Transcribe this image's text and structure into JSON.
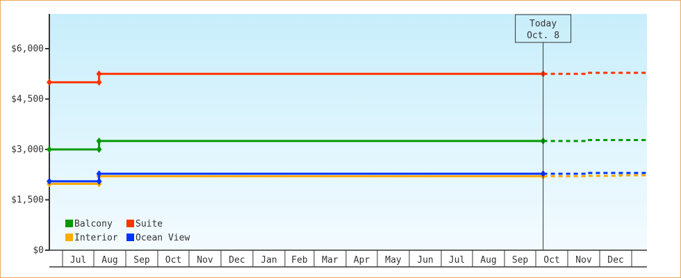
{
  "chart_data": {
    "type": "line",
    "title": "",
    "xlabel": "",
    "ylabel": "",
    "ylim": [
      0,
      7000
    ],
    "yticks": [
      0,
      1500,
      3000,
      4500,
      6000
    ],
    "ytick_labels": [
      "$0",
      "$1,500",
      "$3,000",
      "$4,500",
      "$6,000"
    ],
    "x_months": [
      "Jul",
      "Aug",
      "Sep",
      "Oct",
      "Nov",
      "Dec",
      "Jan",
      "Feb",
      "Mar",
      "Apr",
      "May",
      "Jun",
      "Jul",
      "Aug",
      "Sep",
      "Oct",
      "Nov",
      "Dec"
    ],
    "x_range": [
      {
        "month": "Jun",
        "day": 18,
        "year": 1
      },
      {
        "month": "Jan",
        "day": 15,
        "year": 3
      }
    ],
    "today_marker": {
      "line1": "Today",
      "line2": "Oct. 8",
      "date": {
        "month": "Oct",
        "day": 8,
        "year": 2
      }
    },
    "legend_placement": "bottom-left",
    "series": [
      {
        "name": "Balcony",
        "color": "#009900",
        "points": [
          {
            "d": {
              "month": "Jun",
              "day": 18,
              "year": 1
            },
            "v": 3000
          },
          {
            "d": {
              "month": "Aug",
              "day": 6,
              "year": 1
            },
            "v": 3000
          },
          {
            "d": {
              "month": "Aug",
              "day": 6,
              "year": 1
            },
            "v": 3250
          },
          {
            "d": {
              "month": "Oct",
              "day": 8,
              "year": 2
            },
            "v": 3250
          }
        ],
        "projection": [
          {
            "d": {
              "month": "Oct",
              "day": 8,
              "year": 2
            },
            "v": 3250
          },
          {
            "d": {
              "month": "Nov",
              "day": 20,
              "year": 2
            },
            "v": 3250
          },
          {
            "d": {
              "month": "Nov",
              "day": 20,
              "year": 2
            },
            "v": 3280
          },
          {
            "d": {
              "month": "Jan",
              "day": 15,
              "year": 3
            },
            "v": 3280
          }
        ]
      },
      {
        "name": "Suite",
        "color": "#ff3300",
        "points": [
          {
            "d": {
              "month": "Jun",
              "day": 18,
              "year": 1
            },
            "v": 5000
          },
          {
            "d": {
              "month": "Aug",
              "day": 6,
              "year": 1
            },
            "v": 5000
          },
          {
            "d": {
              "month": "Aug",
              "day": 6,
              "year": 1
            },
            "v": 5250
          },
          {
            "d": {
              "month": "Oct",
              "day": 8,
              "year": 2
            },
            "v": 5250
          }
        ],
        "projection": [
          {
            "d": {
              "month": "Oct",
              "day": 8,
              "year": 2
            },
            "v": 5250
          },
          {
            "d": {
              "month": "Nov",
              "day": 20,
              "year": 2
            },
            "v": 5250
          },
          {
            "d": {
              "month": "Nov",
              "day": 20,
              "year": 2
            },
            "v": 5280
          },
          {
            "d": {
              "month": "Jan",
              "day": 15,
              "year": 3
            },
            "v": 5280
          }
        ]
      },
      {
        "name": "Interior",
        "color": "#ffaa00",
        "points": [
          {
            "d": {
              "month": "Jun",
              "day": 18,
              "year": 1
            },
            "v": 1975
          },
          {
            "d": {
              "month": "Aug",
              "day": 6,
              "year": 1
            },
            "v": 1975
          },
          {
            "d": {
              "month": "Aug",
              "day": 6,
              "year": 1
            },
            "v": 2200
          },
          {
            "d": {
              "month": "Oct",
              "day": 8,
              "year": 2
            },
            "v": 2200
          }
        ],
        "projection": [
          {
            "d": {
              "month": "Oct",
              "day": 8,
              "year": 2
            },
            "v": 2200
          },
          {
            "d": {
              "month": "Nov",
              "day": 20,
              "year": 2
            },
            "v": 2200
          },
          {
            "d": {
              "month": "Nov",
              "day": 20,
              "year": 2
            },
            "v": 2215
          },
          {
            "d": {
              "month": "Dec",
              "day": 20,
              "year": 2
            },
            "v": 2215
          },
          {
            "d": {
              "month": "Dec",
              "day": 20,
              "year": 2
            },
            "v": 2230
          },
          {
            "d": {
              "month": "Jan",
              "day": 15,
              "year": 3
            },
            "v": 2230
          }
        ]
      },
      {
        "name": "Ocean View",
        "color": "#0033ff",
        "points": [
          {
            "d": {
              "month": "Jun",
              "day": 18,
              "year": 1
            },
            "v": 2050
          },
          {
            "d": {
              "month": "Aug",
              "day": 6,
              "year": 1
            },
            "v": 2050
          },
          {
            "d": {
              "month": "Aug",
              "day": 6,
              "year": 1
            },
            "v": 2275
          },
          {
            "d": {
              "month": "Oct",
              "day": 8,
              "year": 2
            },
            "v": 2275
          }
        ],
        "projection": [
          {
            "d": {
              "month": "Oct",
              "day": 8,
              "year": 2
            },
            "v": 2275
          },
          {
            "d": {
              "month": "Nov",
              "day": 20,
              "year": 2
            },
            "v": 2275
          },
          {
            "d": {
              "month": "Nov",
              "day": 20,
              "year": 2
            },
            "v": 2300
          },
          {
            "d": {
              "month": "Jan",
              "day": 15,
              "year": 3
            },
            "v": 2300
          }
        ]
      }
    ],
    "colors": {
      "background_top": "#c8eefb",
      "background_bottom": "#f3fbff",
      "axis": "#333333",
      "border": "#e8a860"
    }
  }
}
